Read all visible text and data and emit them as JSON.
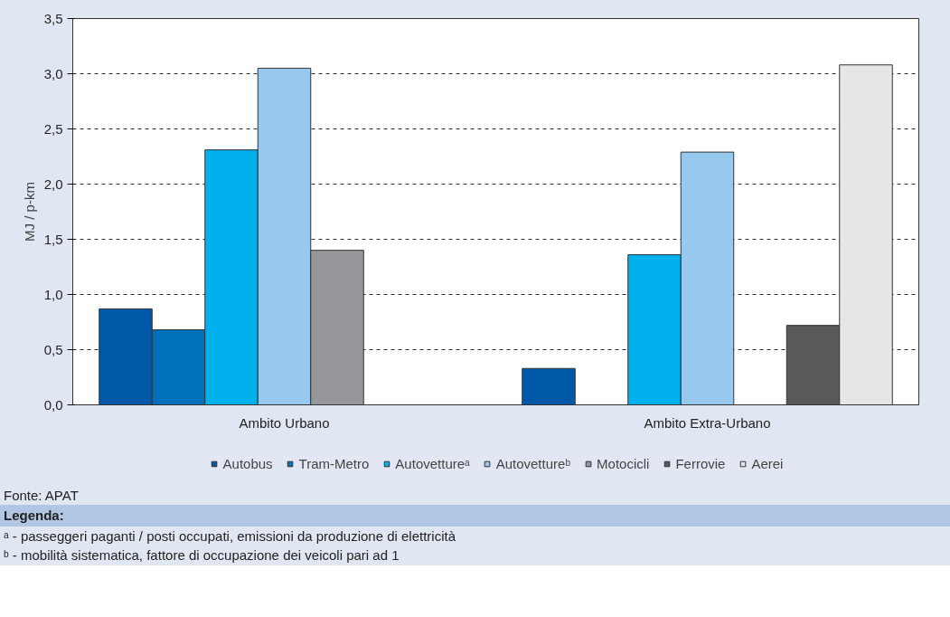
{
  "chart_data": {
    "type": "bar",
    "ylabel": "MJ / p-km",
    "categories": [
      "Ambito Urbano",
      "Ambito Extra-Urbano"
    ],
    "series": [
      {
        "name": "Autobus",
        "color": "#0058a8",
        "values": [
          0.87,
          0.33
        ]
      },
      {
        "name": "Tram-Metro",
        "color": "#0070bc",
        "values": [
          0.68,
          null
        ]
      },
      {
        "name": "Autovettureᵃ",
        "color": "#00b1ed",
        "values": [
          2.31,
          1.36
        ]
      },
      {
        "name": "Autovettureᵇ",
        "color": "#96c9ed",
        "values": [
          3.05,
          2.29
        ]
      },
      {
        "name": "Motocicli",
        "color": "#96979a",
        "values": [
          1.4,
          null
        ]
      },
      {
        "name": "Ferrovie",
        "color": "#58595b",
        "values": [
          null,
          0.72
        ]
      },
      {
        "name": "Aerei",
        "color": "#e5e6e8",
        "values": [
          null,
          3.08
        ]
      }
    ],
    "ylim": [
      0,
      3.5
    ],
    "yticks": [
      {
        "value": 0,
        "label": "0,0"
      },
      {
        "value": 0.5,
        "label": "0,5"
      },
      {
        "value": 1,
        "label": "1,0"
      },
      {
        "value": 1.5,
        "label": "1,5"
      },
      {
        "value": 2,
        "label": "2,0"
      },
      {
        "value": 2.5,
        "label": "2,5"
      },
      {
        "value": 3,
        "label": "3,0"
      },
      {
        "value": 3.5,
        "label": "3,5"
      }
    ],
    "grid": "y",
    "legend": "bottom",
    "annotations": [
      "Fonte: APAT",
      "Legenda:",
      "ᵃ - passeggeri paganti / posti occupati, emissioni da produzione di elettricità",
      "ᵇ - mobilità sistematica, fattore di occupazione dei veicoli pari ad 1"
    ]
  }
}
